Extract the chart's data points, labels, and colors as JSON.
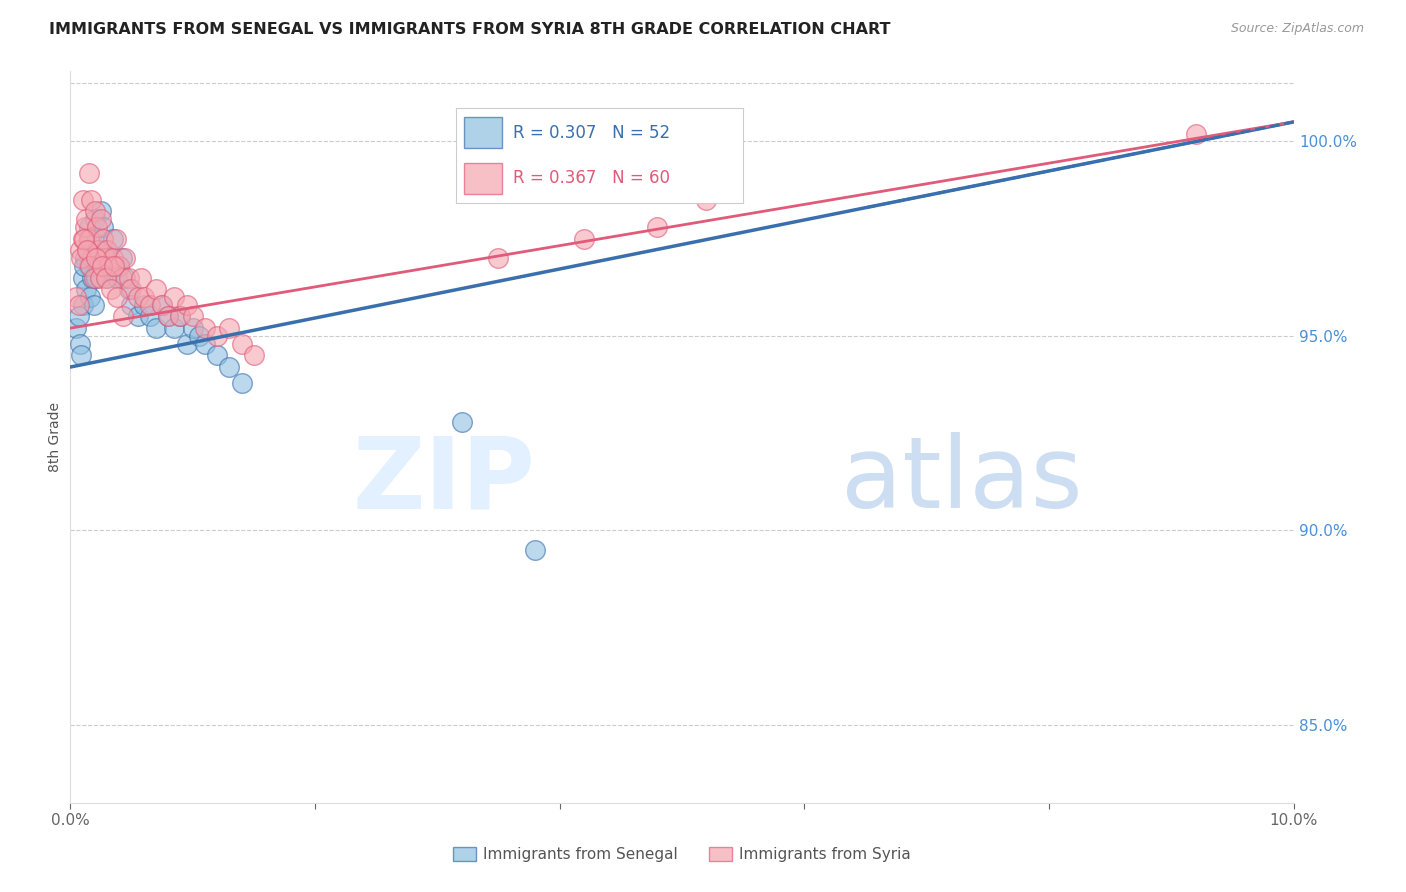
{
  "title": "IMMIGRANTS FROM SENEGAL VS IMMIGRANTS FROM SYRIA 8TH GRADE CORRELATION CHART",
  "source": "Source: ZipAtlas.com",
  "ylabel": "8th Grade",
  "ylabel_right_ticks": [
    "85.0%",
    "90.0%",
    "95.0%",
    "100.0%"
  ],
  "ylabel_right_vals": [
    85.0,
    90.0,
    95.0,
    100.0
  ],
  "xmin": 0.0,
  "xmax": 10.0,
  "ymin": 83.0,
  "ymax": 101.8,
  "color_senegal": "#8fbfe0",
  "color_syria": "#f4a6b0",
  "trend_color_senegal": "#3a6fad",
  "trend_color_syria": "#e05a7a",
  "senegal_x": [
    0.05,
    0.08,
    0.1,
    0.1,
    0.12,
    0.13,
    0.15,
    0.15,
    0.17,
    0.18,
    0.2,
    0.2,
    0.22,
    0.23,
    0.25,
    0.25,
    0.27,
    0.28,
    0.3,
    0.32,
    0.33,
    0.35,
    0.38,
    0.4,
    0.42,
    0.45,
    0.48,
    0.5,
    0.55,
    0.6,
    0.65,
    0.7,
    0.75,
    0.8,
    0.85,
    0.9,
    0.95,
    1.0,
    1.05,
    1.1,
    1.2,
    1.3,
    1.4,
    0.07,
    0.09,
    0.11,
    0.14,
    0.16,
    0.19,
    0.21,
    3.2,
    3.8
  ],
  "senegal_y": [
    95.2,
    94.8,
    96.5,
    95.8,
    97.0,
    96.2,
    97.8,
    96.8,
    97.5,
    96.5,
    98.0,
    97.2,
    97.5,
    96.8,
    98.2,
    97.0,
    97.8,
    97.2,
    96.5,
    97.0,
    96.8,
    97.5,
    96.5,
    96.8,
    97.0,
    96.5,
    96.2,
    95.8,
    95.5,
    95.8,
    95.5,
    95.2,
    95.8,
    95.5,
    95.2,
    95.5,
    94.8,
    95.2,
    95.0,
    94.8,
    94.5,
    94.2,
    93.8,
    95.5,
    94.5,
    96.8,
    97.2,
    96.0,
    95.8,
    96.5,
    92.8,
    89.5
  ],
  "syria_x": [
    0.05,
    0.07,
    0.08,
    0.1,
    0.1,
    0.12,
    0.13,
    0.15,
    0.15,
    0.17,
    0.18,
    0.2,
    0.22,
    0.23,
    0.25,
    0.27,
    0.28,
    0.3,
    0.32,
    0.35,
    0.37,
    0.4,
    0.42,
    0.45,
    0.48,
    0.5,
    0.55,
    0.58,
    0.6,
    0.65,
    0.7,
    0.75,
    0.8,
    0.85,
    0.9,
    0.95,
    1.0,
    1.1,
    1.2,
    1.3,
    1.4,
    1.5,
    0.09,
    0.11,
    0.14,
    0.16,
    0.19,
    0.21,
    0.24,
    0.26,
    0.29,
    0.33,
    0.38,
    0.43,
    3.5,
    4.2,
    4.8,
    5.2,
    9.2,
    0.36
  ],
  "syria_y": [
    96.0,
    95.8,
    97.2,
    98.5,
    97.5,
    97.8,
    98.0,
    99.2,
    97.5,
    98.5,
    97.0,
    98.2,
    97.8,
    97.2,
    98.0,
    97.5,
    97.0,
    97.2,
    96.8,
    97.0,
    97.5,
    96.8,
    96.5,
    97.0,
    96.5,
    96.2,
    96.0,
    96.5,
    96.0,
    95.8,
    96.2,
    95.8,
    95.5,
    96.0,
    95.5,
    95.8,
    95.5,
    95.2,
    95.0,
    95.2,
    94.8,
    94.5,
    97.0,
    97.5,
    97.2,
    96.8,
    96.5,
    97.0,
    96.5,
    96.8,
    96.5,
    96.2,
    96.0,
    95.5,
    97.0,
    97.5,
    97.8,
    98.5,
    100.2,
    96.8
  ]
}
